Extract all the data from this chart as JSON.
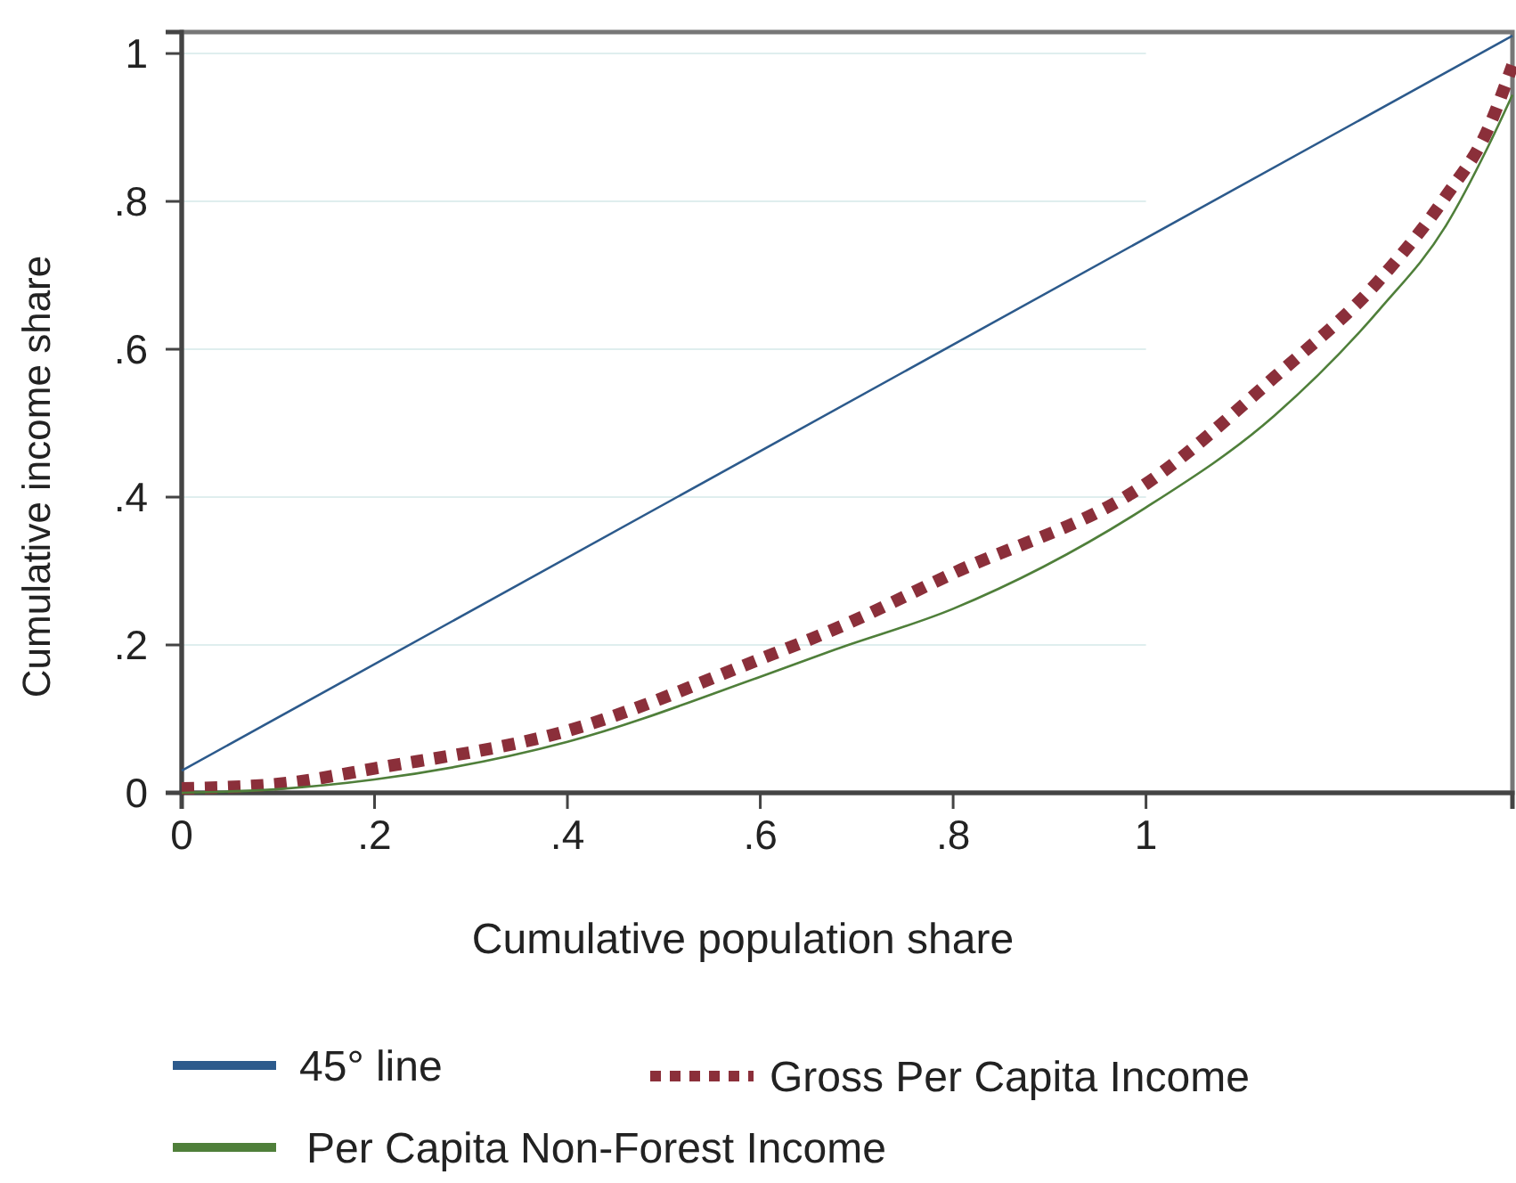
{
  "chart_data": {
    "type": "line",
    "xlabel": "Cumulative population share",
    "ylabel": "Cumulative income share",
    "xlim": [
      0,
      1.38
    ],
    "ylim": [
      0,
      1.029
    ],
    "xticks": [
      {
        "value": 0,
        "label": "0"
      },
      {
        "value": 0.2,
        "label": ".2"
      },
      {
        "value": 0.4,
        "label": ".4"
      },
      {
        "value": 0.6,
        "label": ".6"
      },
      {
        "value": 0.8,
        "label": ".8"
      },
      {
        "value": 1,
        "label": "1"
      }
    ],
    "yticks": [
      {
        "value": 0,
        "label": "0"
      },
      {
        "value": 0.2,
        "label": ".2"
      },
      {
        "value": 0.4,
        "label": ".4"
      },
      {
        "value": 0.6,
        "label": ".6"
      },
      {
        "value": 0.8,
        "label": ".8"
      },
      {
        "value": 1,
        "label": "1"
      }
    ],
    "grid": "y",
    "legend": "bottom",
    "series": [
      {
        "name": "45° line",
        "color": "#2c5a8c",
        "line_style": "solid",
        "x": [
          0,
          1.38
        ],
        "values": [
          0.03,
          1.024
        ]
      },
      {
        "name": "Gross Per Capita Income",
        "color": "#8b2f3a",
        "line_style": "dotted",
        "x": [
          0,
          0.1,
          0.2,
          0.4,
          0.6,
          0.678,
          0.8,
          1.0,
          1.133,
          1.243,
          1.311,
          1.354,
          1.38
        ],
        "values": [
          0.006,
          0.012,
          0.033,
          0.084,
          0.181,
          0.222,
          0.297,
          0.418,
          0.562,
          0.695,
          0.807,
          0.896,
          0.984
        ]
      },
      {
        "name": "Per Capita Non-Forest Income",
        "color": "#4f7f3a",
        "line_style": "solid",
        "x": [
          0,
          0.1,
          0.2,
          0.4,
          0.6,
          0.678,
          0.8,
          1.0,
          1.133,
          1.243,
          1.311,
          1.354,
          1.38
        ],
        "values": [
          0,
          0.005,
          0.018,
          0.069,
          0.157,
          0.194,
          0.249,
          0.386,
          0.51,
          0.655,
          0.767,
          0.872,
          0.944
        ]
      }
    ]
  }
}
